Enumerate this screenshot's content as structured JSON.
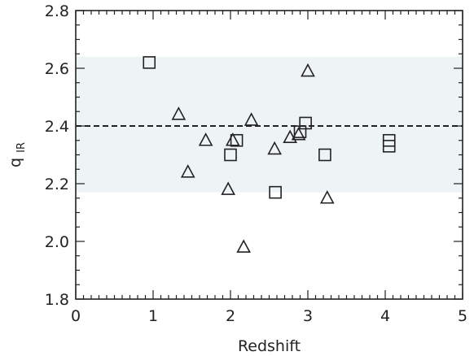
{
  "chart_data": {
    "type": "scatter",
    "xlabel": "Redshift",
    "ylabel_main": "q",
    "ylabel_sub": "IR",
    "xlim": [
      0,
      5
    ],
    "ylim": [
      1.8,
      2.8
    ],
    "x_ticks": [
      "0",
      "1",
      "2",
      "3",
      "4",
      "5"
    ],
    "y_ticks": [
      "1.8",
      "2.0",
      "2.2",
      "2.4",
      "2.6",
      "2.8"
    ],
    "band": {
      "y_min": 2.17,
      "y_max": 2.64,
      "color": "#eef4f6"
    },
    "reference_line": {
      "y": 2.4,
      "style": "dashed"
    },
    "series": [
      {
        "marker": "square",
        "points": [
          {
            "x": 0.95,
            "y": 2.62
          },
          {
            "x": 2.0,
            "y": 2.3
          },
          {
            "x": 2.08,
            "y": 2.35
          },
          {
            "x": 2.58,
            "y": 2.17
          },
          {
            "x": 2.9,
            "y": 2.38
          },
          {
            "x": 2.97,
            "y": 2.41
          },
          {
            "x": 3.22,
            "y": 2.3
          },
          {
            "x": 4.05,
            "y": 2.35
          },
          {
            "x": 4.05,
            "y": 2.33
          }
        ]
      },
      {
        "marker": "triangle",
        "points": [
          {
            "x": 1.33,
            "y": 2.44
          },
          {
            "x": 1.45,
            "y": 2.24
          },
          {
            "x": 1.68,
            "y": 2.35
          },
          {
            "x": 1.97,
            "y": 2.18
          },
          {
            "x": 2.03,
            "y": 2.35
          },
          {
            "x": 2.17,
            "y": 1.98
          },
          {
            "x": 2.27,
            "y": 2.42
          },
          {
            "x": 2.57,
            "y": 2.32
          },
          {
            "x": 2.77,
            "y": 2.36
          },
          {
            "x": 2.88,
            "y": 2.37
          },
          {
            "x": 3.0,
            "y": 2.59
          },
          {
            "x": 3.25,
            "y": 2.15
          }
        ]
      }
    ]
  }
}
